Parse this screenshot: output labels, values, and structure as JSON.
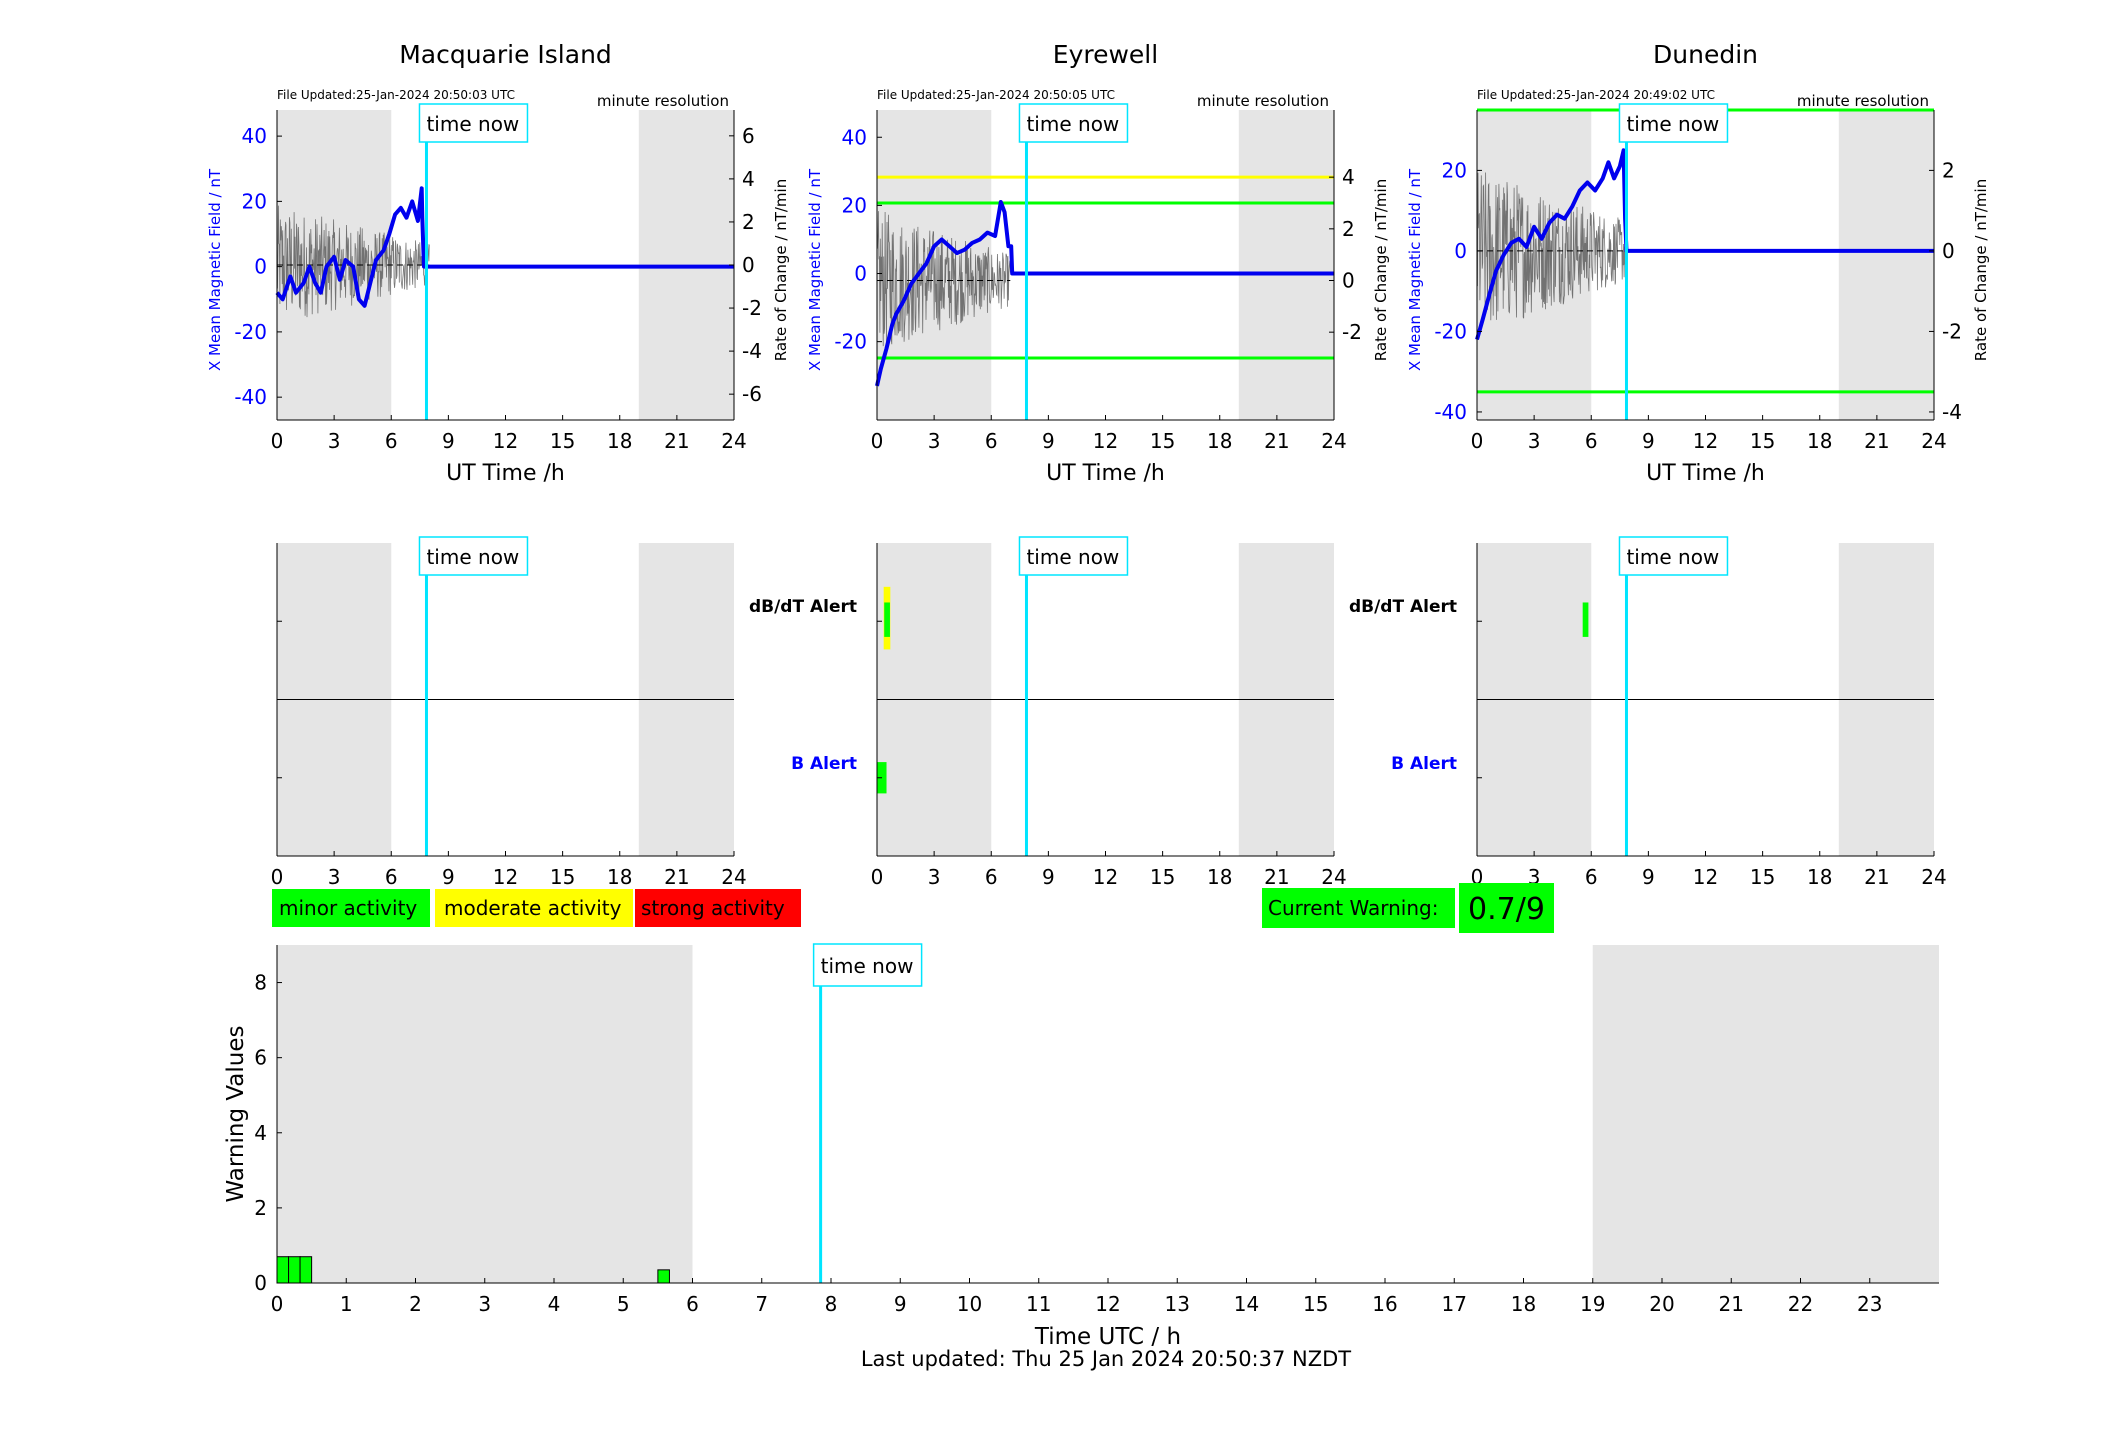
{
  "colors": {
    "night_shade": "#e5e5e5",
    "time_now": "#00e5ff",
    "field_line": "#0000ee",
    "minor": "#00ff00",
    "moderate": "#ffff00",
    "strong": "#ff0000",
    "axis_blue": "#0000ff"
  },
  "stations": [
    {
      "name": "Macquarie Island",
      "file_updated": "File Updated:25-Jan-2024 20:50:03 UTC",
      "resolution": "minute resolution",
      "ylabel_left": "X Mean Magnetic Field / nT",
      "ylabel_right": "Rate of Change / nT/min",
      "ylim_left": [
        -47,
        48
      ],
      "ylim_right": [
        -7.2,
        7.2
      ],
      "yticks_left": [
        -40,
        -20,
        0,
        20,
        40
      ],
      "yticks_right": [
        -6,
        -4,
        -2,
        0,
        2,
        4,
        6
      ],
      "threshold_lines": [],
      "field_series": {
        "x": [
          0,
          0.3,
          0.7,
          1.0,
          1.4,
          1.7,
          2.0,
          2.3,
          2.6,
          3.0,
          3.3,
          3.6,
          4.0,
          4.3,
          4.6,
          4.9,
          5.2,
          5.6,
          5.9,
          6.2,
          6.5,
          6.8,
          7.1,
          7.4,
          7.6,
          7.63,
          7.7,
          7.72,
          24
        ],
        "y": [
          -8,
          -10,
          -3,
          -8,
          -5,
          0,
          -5,
          -8,
          0,
          3,
          -4,
          2,
          0,
          -10,
          -12,
          -5,
          2,
          5,
          10,
          16,
          18,
          15,
          20,
          14,
          24,
          15,
          3,
          0,
          0
        ]
      },
      "rate_noise_amp": 2.0,
      "rate_end": 8.0,
      "alerts": {
        "dbdt": [],
        "b": []
      }
    },
    {
      "name": "Eyrewell",
      "file_updated": "File Updated:25-Jan-2024 20:50:05 UTC",
      "resolution": "minute resolution",
      "ylabel_left": "X Mean Magnetic Field / nT",
      "ylabel_right": "Rate of Change / nT/min",
      "ylim_left": [
        -43,
        48
      ],
      "ylim_right": [
        -5.4,
        6.6
      ],
      "yticks_left": [
        -20,
        0,
        20,
        40
      ],
      "yticks_right": [
        -2,
        0,
        2,
        4
      ],
      "threshold_lines": [
        {
          "value_right": 4,
          "color": "#ffff00"
        },
        {
          "value_right": 3,
          "color": "#00ff00"
        },
        {
          "value_right": -3,
          "color": "#00ff00"
        }
      ],
      "field_series": {
        "x": [
          0,
          0.2,
          0.5,
          0.8,
          1.0,
          1.4,
          1.8,
          2.2,
          2.6,
          3.0,
          3.4,
          3.8,
          4.2,
          4.6,
          5.0,
          5.4,
          5.8,
          6.2,
          6.5,
          6.7,
          6.9,
          7.05,
          7.1,
          24
        ],
        "y": [
          -33,
          -28,
          -22,
          -15,
          -12,
          -8,
          -3,
          0,
          3,
          8,
          10,
          8,
          6,
          7,
          9,
          10,
          12,
          11,
          21,
          18,
          8,
          8,
          0,
          0
        ]
      },
      "rate_noise_amp": 2.0,
      "rate_end": 7.0,
      "alerts": {
        "dbdt": [
          {
            "x": 0.35,
            "w": 0.35,
            "color": "#ffff00",
            "ylo": 0.66,
            "yhi": 0.86
          },
          {
            "x": 0.38,
            "w": 0.3,
            "color": "#00ff00",
            "ylo": 0.7,
            "yhi": 0.81
          }
        ],
        "b": [
          {
            "x": 0.0,
            "w": 0.5,
            "color": "#00ff00",
            "ylo": 0.2,
            "yhi": 0.3
          }
        ]
      }
    },
    {
      "name": "Dunedin",
      "file_updated": "File Updated:25-Jan-2024 20:49:02 UTC",
      "resolution": "minute resolution",
      "ylabel_left": "X Mean Magnetic Field / nT",
      "ylabel_right": "Rate of Change / nT/min",
      "ylim_left": [
        -42,
        35
      ],
      "ylim_right": [
        -4.2,
        3.5
      ],
      "yticks_left": [
        -40,
        -20,
        0,
        20
      ],
      "yticks_right": [
        -4,
        -2,
        0,
        2
      ],
      "threshold_lines": [
        {
          "value_right": 3.5,
          "color": "#00ff00"
        },
        {
          "value_right": -3.5,
          "color": "#00ff00"
        }
      ],
      "field_series": {
        "x": [
          0,
          0.3,
          0.7,
          1.0,
          1.4,
          1.8,
          2.2,
          2.6,
          3.0,
          3.4,
          3.8,
          4.2,
          4.6,
          5.0,
          5.4,
          5.8,
          6.2,
          6.6,
          6.9,
          7.2,
          7.5,
          7.7,
          7.78,
          7.85,
          24
        ],
        "y": [
          -22,
          -17,
          -10,
          -5,
          -1,
          2,
          3,
          1,
          6,
          3,
          7,
          9,
          8,
          11,
          15,
          17,
          15,
          18,
          22,
          18,
          21,
          25,
          8,
          0,
          0
        ]
      },
      "rate_noise_amp": 1.5,
      "rate_end": 7.9,
      "alerts": {
        "dbdt": [
          {
            "x": 5.55,
            "w": 0.3,
            "color": "#00ff00",
            "ylo": 0.7,
            "yhi": 0.81
          }
        ],
        "b": []
      }
    }
  ],
  "common": {
    "xlabel": "UT Time /h",
    "xticks": [
      0,
      3,
      6,
      9,
      12,
      15,
      18,
      21,
      24
    ],
    "xlim": [
      0,
      24
    ],
    "night_shade": [
      [
        0,
        6
      ],
      [
        19,
        24
      ]
    ],
    "time_now_hour": 7.85,
    "time_now_label": "time now",
    "alert_labels": {
      "dbdt": "dB/dT Alert",
      "b": "B Alert"
    }
  },
  "legend": {
    "minor": "minor activity",
    "moderate": "moderate activity",
    "strong": "strong activity"
  },
  "current_warning": {
    "label": "Current Warning:",
    "value": "0.7/9"
  },
  "chart_data": {
    "type": "bar",
    "xlabel": "Time UTC / h",
    "ylabel": "Warning Values",
    "xlim": [
      0,
      24
    ],
    "ylim": [
      0,
      9
    ],
    "xticks": [
      0,
      1,
      2,
      3,
      4,
      5,
      6,
      7,
      8,
      9,
      10,
      11,
      12,
      13,
      14,
      15,
      16,
      17,
      18,
      19,
      20,
      21,
      22,
      23
    ],
    "yticks": [
      0,
      2,
      4,
      6,
      8
    ],
    "bars": [
      {
        "x": 0.0,
        "w": 0.167,
        "value": 0.7
      },
      {
        "x": 0.167,
        "w": 0.167,
        "value": 0.7
      },
      {
        "x": 0.333,
        "w": 0.167,
        "value": 0.7
      },
      {
        "x": 5.5,
        "w": 0.167,
        "value": 0.35
      }
    ],
    "night_shade": [
      [
        0,
        6
      ],
      [
        19,
        24
      ]
    ],
    "time_now_hour": 7.85
  },
  "footer": {
    "last_updated": "Last updated: Thu 25 Jan 2024 20:50:37 NZDT"
  }
}
